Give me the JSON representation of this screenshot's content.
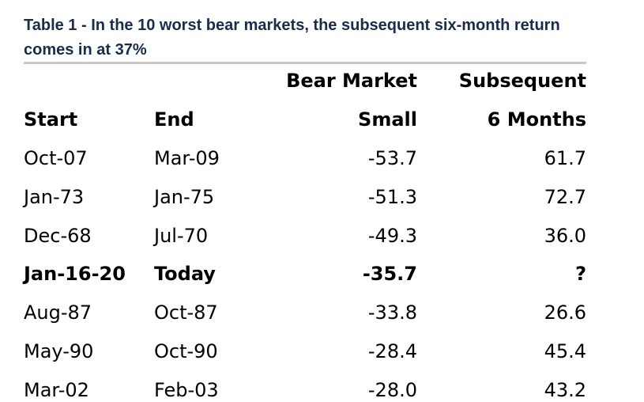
{
  "title": "Table 1 - In the 10 worst bear markets, the subsequent six-month return comes in at 37%",
  "header": {
    "row1": {
      "bear": "Bear Market",
      "sub": "Subsequent"
    },
    "row2": {
      "start": "Start",
      "end": "End",
      "bear": "Small",
      "sub": "6 Months"
    }
  },
  "rows": [
    {
      "start": "Oct-07",
      "end": "Mar-09",
      "bear": "-53.7",
      "sub": "61.7",
      "bold": false
    },
    {
      "start": "Jan-73",
      "end": "Jan-75",
      "bear": "-51.3",
      "sub": "72.7",
      "bold": false
    },
    {
      "start": "Dec-68",
      "end": "Jul-70",
      "bear": "-49.3",
      "sub": "36.0",
      "bold": false
    },
    {
      "start": "Jan-16-20",
      "end": "Today",
      "bear": "-35.7",
      "sub": "?",
      "bold": true
    },
    {
      "start": "Aug-87",
      "end": "Oct-87",
      "bear": "-33.8",
      "sub": "26.6",
      "bold": false
    },
    {
      "start": "May-90",
      "end": "Oct-90",
      "bear": "-28.4",
      "sub": "45.4",
      "bold": false
    },
    {
      "start": "Mar-02",
      "end": "Feb-03",
      "bear": "-28.0",
      "sub": "43.2",
      "bold": false
    }
  ]
}
